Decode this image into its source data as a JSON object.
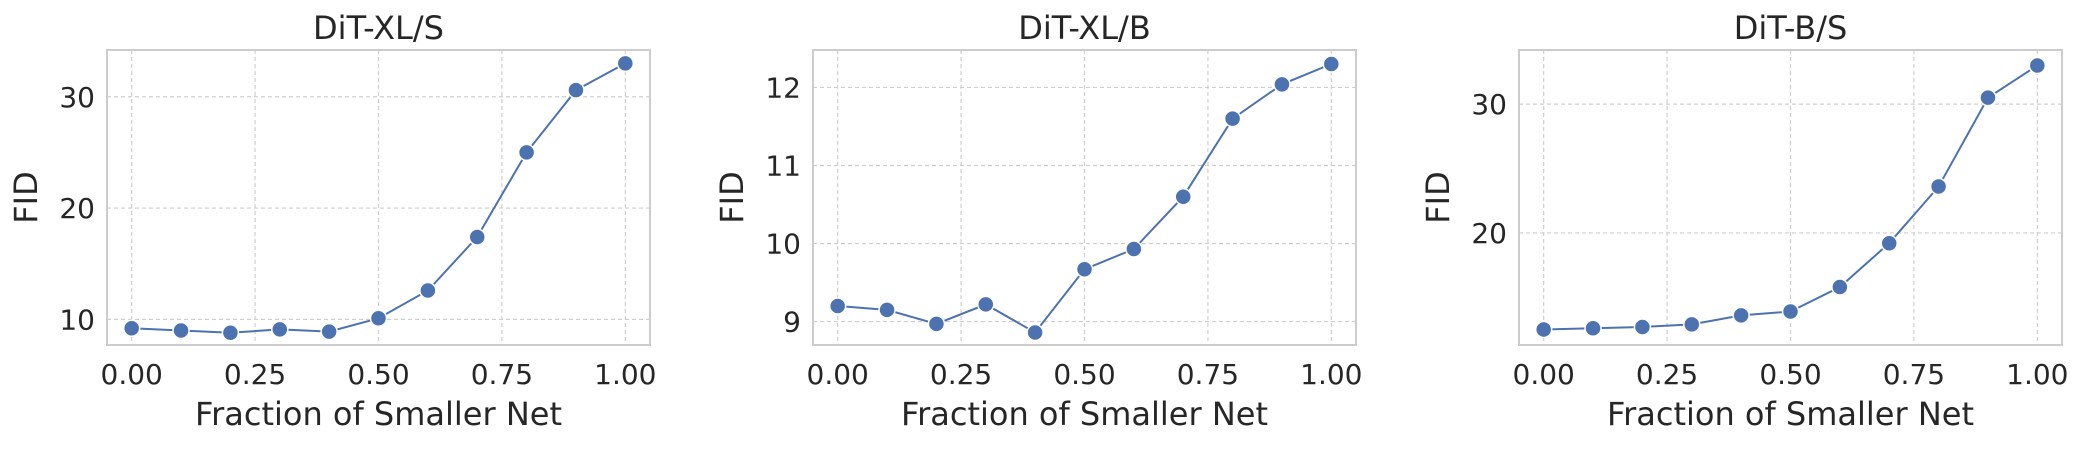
{
  "chart_data": [
    {
      "type": "line",
      "title": "DiT-XL/S",
      "xlabel": "Fraction of Smaller Net",
      "ylabel": "FID",
      "x": [
        0.0,
        0.1,
        0.2,
        0.3,
        0.4,
        0.5,
        0.6,
        0.7,
        0.8,
        0.9,
        1.0
      ],
      "series": [
        {
          "values": [
            9.2,
            9.0,
            8.8,
            9.1,
            8.9,
            10.1,
            12.6,
            17.4,
            25.0,
            30.6,
            33.0
          ]
        }
      ],
      "xlim": [
        -0.05,
        1.05
      ],
      "ylim": [
        7.7,
        34.2
      ],
      "xticks": [
        0.0,
        0.25,
        0.5,
        0.75,
        1.0
      ],
      "xtick_labels": [
        "0.00",
        "0.25",
        "0.50",
        "0.75",
        "1.00"
      ],
      "yticks": [
        10,
        20,
        30
      ],
      "ytick_labels": [
        "10",
        "20",
        "30"
      ],
      "grid": true,
      "color": "#4c72b0"
    },
    {
      "type": "line",
      "title": "DiT-XL/B",
      "xlabel": "Fraction of Smaller Net",
      "ylabel": "FID",
      "x": [
        0.0,
        0.1,
        0.2,
        0.3,
        0.4,
        0.5,
        0.6,
        0.7,
        0.8,
        0.9,
        1.0
      ],
      "series": [
        {
          "values": [
            9.2,
            9.15,
            8.97,
            9.22,
            8.86,
            9.67,
            9.93,
            10.6,
            11.6,
            12.04,
            12.3
          ]
        }
      ],
      "xlim": [
        -0.05,
        1.05
      ],
      "ylim": [
        8.7,
        12.48
      ],
      "xticks": [
        0.0,
        0.25,
        0.5,
        0.75,
        1.0
      ],
      "xtick_labels": [
        "0.00",
        "0.25",
        "0.50",
        "0.75",
        "1.00"
      ],
      "yticks": [
        9,
        10,
        11,
        12
      ],
      "ytick_labels": [
        "9",
        "10",
        "11",
        "12"
      ],
      "grid": true,
      "color": "#4c72b0"
    },
    {
      "type": "line",
      "title": "DiT-B/S",
      "xlabel": "Fraction of Smaller Net",
      "ylabel": "FID",
      "x": [
        0.0,
        0.1,
        0.2,
        0.3,
        0.4,
        0.5,
        0.6,
        0.7,
        0.8,
        0.9,
        1.0
      ],
      "series": [
        {
          "values": [
            12.5,
            12.6,
            12.7,
            12.9,
            13.6,
            13.9,
            15.8,
            19.2,
            23.6,
            30.5,
            33.0
          ]
        }
      ],
      "xlim": [
        -0.05,
        1.05
      ],
      "ylim": [
        11.3,
        34.2
      ],
      "xticks": [
        0.0,
        0.25,
        0.5,
        0.75,
        1.0
      ],
      "xtick_labels": [
        "0.00",
        "0.25",
        "0.50",
        "0.75",
        "1.00"
      ],
      "yticks": [
        20,
        30
      ],
      "ytick_labels": [
        "20",
        "30"
      ],
      "grid": true,
      "color": "#4c72b0"
    }
  ]
}
